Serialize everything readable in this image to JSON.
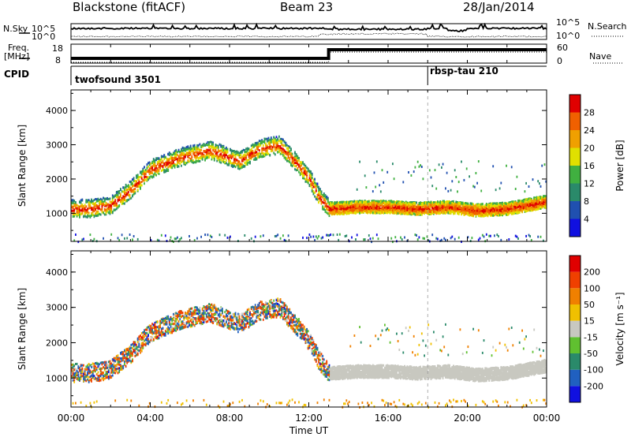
{
  "header": {
    "station": "Blackstone (fitACF)",
    "beam": "Beam 23",
    "date": "28/Jan/2014"
  },
  "noise_panel": {
    "left_label": "N.Sky",
    "right_label": "N.Search",
    "left_ticks": [
      "10^5",
      "10^0"
    ],
    "right_ticks": [
      "10^5",
      "10^0"
    ]
  },
  "freq_panel": {
    "left_label_line1": "Freq.",
    "left_label_line2": "[MHz]",
    "right_label": "Nave",
    "left_ticks": [
      "18",
      "8"
    ],
    "right_ticks": [
      "60",
      "0"
    ]
  },
  "cpid": {
    "label": "CPID",
    "segments": [
      {
        "name": "twofsound 3501",
        "start_hour": 0
      },
      {
        "name": "rbsp-tau 210",
        "start_hour": 18
      }
    ]
  },
  "chart_data": [
    {
      "type": "heatmap",
      "panel": "power",
      "ylabel": "Slant Range [km]",
      "xlabel": "",
      "xlim": [
        0,
        24
      ],
      "ylim": [
        180,
        4600
      ],
      "yticks": [
        "1000",
        "2000",
        "3000",
        "4000"
      ],
      "colorbar_label": "Power [dB]",
      "colorbar_ticks": [
        "4",
        "8",
        "12",
        "16",
        "20",
        "24",
        "28"
      ],
      "colorbar_colors": [
        "#1010e0",
        "#2050b0",
        "#2a8a6a",
        "#40b040",
        "#e0e000",
        "#f0a000",
        "#f06000",
        "#e00000"
      ],
      "features": [
        {
          "t": [
            0.0,
            1.0,
            2.0,
            3.0,
            4.0,
            5.5,
            7.0,
            8.5,
            9.5,
            10.5,
            11.5,
            12.0,
            12.5,
            13.0,
            14.5,
            16.0,
            17.5,
            19.0,
            20.5,
            22.0,
            23.9
          ],
          "range_km": [
            1150,
            1150,
            1250,
            1700,
            2300,
            2650,
            2850,
            2550,
            2900,
            3000,
            2400,
            2050,
            1500,
            1150,
            1200,
            1200,
            1150,
            1200,
            1100,
            1150,
            1350
          ]
        }
      ]
    },
    {
      "type": "heatmap",
      "panel": "velocity",
      "ylabel": "Slant Range [km]",
      "xlabel": "Time UT",
      "xlim": [
        0,
        24
      ],
      "ylim": [
        180,
        4600
      ],
      "yticks": [
        "1000",
        "2000",
        "3000",
        "4000"
      ],
      "xticks": [
        "00:00",
        "04:00",
        "08:00",
        "12:00",
        "16:00",
        "20:00",
        "00:00"
      ],
      "colorbar_label": "Velocity [m s⁻¹]",
      "colorbar_ticks": [
        "200",
        "100",
        "50",
        "15",
        "-15",
        "-50",
        "-100",
        "-200"
      ],
      "colorbar_colors": [
        "#1010e0",
        "#2060c0",
        "#2a8a6a",
        "#60c030",
        "#c8c8c0",
        "#f0c000",
        "#f08000",
        "#f04000",
        "#e00000"
      ]
    }
  ]
}
